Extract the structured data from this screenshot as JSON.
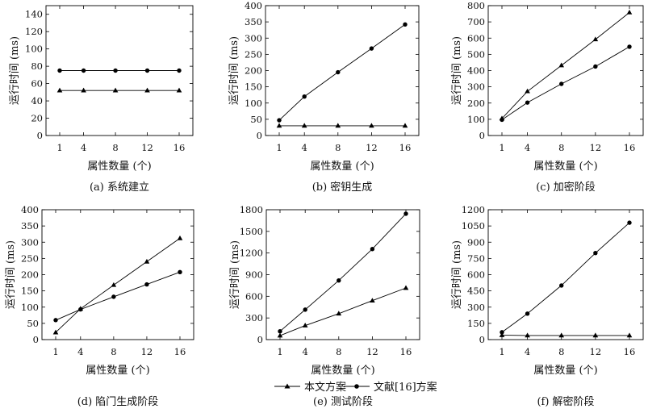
{
  "legend": {
    "ours": "本文方案",
    "ref": "文献[16]方案"
  },
  "colors": {
    "line": "#000000"
  },
  "chart_data": [
    {
      "type": "line",
      "caption": "(a) 系统建立",
      "xlabel": "属性数量 (个)",
      "ylabel": "运行时间 (ms)",
      "categories": [
        "1",
        "4",
        "8",
        "12",
        "16"
      ],
      "x": [
        1,
        4,
        8,
        12,
        16
      ],
      "ylim": [
        0,
        150
      ],
      "yticks": [
        0,
        20,
        40,
        60,
        80,
        100,
        120,
        140
      ],
      "series": [
        {
          "name": "本文方案",
          "marker": "triangle",
          "values": [
            52,
            52,
            52,
            52,
            52
          ]
        },
        {
          "name": "文献[16]方案",
          "marker": "circle",
          "values": [
            75,
            75,
            75,
            75,
            75
          ]
        }
      ]
    },
    {
      "type": "line",
      "caption": "(b) 密钥生成",
      "xlabel": "属性数量 (个)",
      "ylabel": "运行时间 (ms)",
      "categories": [
        "1",
        "4",
        "8",
        "12",
        "16"
      ],
      "x": [
        1,
        4,
        8,
        12,
        16
      ],
      "ylim": [
        0,
        400
      ],
      "yticks": [
        0,
        50,
        100,
        150,
        200,
        250,
        300,
        350,
        400
      ],
      "series": [
        {
          "name": "本文方案",
          "marker": "triangle",
          "values": [
            30,
            30,
            30,
            30,
            30
          ]
        },
        {
          "name": "文献[16]方案",
          "marker": "circle",
          "values": [
            47,
            120,
            195,
            268,
            342
          ]
        }
      ]
    },
    {
      "type": "line",
      "caption": "(c) 加密阶段",
      "xlabel": "属性数量 (个)",
      "ylabel": "运行时间 (ms)",
      "categories": [
        "1",
        "4",
        "8",
        "12",
        "16"
      ],
      "x": [
        1,
        4,
        8,
        12,
        16
      ],
      "ylim": [
        0,
        800
      ],
      "yticks": [
        0,
        100,
        200,
        300,
        400,
        500,
        600,
        700,
        800
      ],
      "series": [
        {
          "name": "本文方案",
          "marker": "triangle",
          "values": [
            105,
            272,
            432,
            592,
            758
          ]
        },
        {
          "name": "文献[16]方案",
          "marker": "circle",
          "values": [
            97,
            203,
            318,
            425,
            547
          ]
        }
      ]
    },
    {
      "type": "line",
      "caption": "(d) 陷门生成阶段",
      "xlabel": "属性数量 (个)",
      "ylabel": "运行时间 (ms)",
      "categories": [
        "1",
        "4",
        "8",
        "12",
        "16"
      ],
      "x": [
        1,
        4,
        8,
        12,
        16
      ],
      "ylim": [
        0,
        400
      ],
      "yticks": [
        0,
        50,
        100,
        150,
        200,
        250,
        300,
        350,
        400
      ],
      "series": [
        {
          "name": "本文方案",
          "marker": "triangle",
          "values": [
            22,
            95,
            168,
            240,
            312
          ]
        },
        {
          "name": "文献[16]方案",
          "marker": "circle",
          "values": [
            60,
            93,
            132,
            170,
            208
          ]
        }
      ]
    },
    {
      "type": "line",
      "caption": "(e) 测试阶段",
      "xlabel": "属性数量 (个)",
      "ylabel": "运行时间 (ms)",
      "categories": [
        "1",
        "4",
        "8",
        "12",
        "16"
      ],
      "x": [
        1,
        4,
        8,
        12,
        16
      ],
      "ylim": [
        0,
        1800
      ],
      "yticks": [
        0,
        300,
        600,
        900,
        1200,
        1500,
        1800
      ],
      "series": [
        {
          "name": "本文方案",
          "marker": "triangle",
          "values": [
            55,
            195,
            360,
            540,
            715
          ]
        },
        {
          "name": "文献[16]方案",
          "marker": "circle",
          "values": [
            115,
            415,
            820,
            1255,
            1745
          ]
        }
      ]
    },
    {
      "type": "line",
      "caption": "(f) 解密阶段",
      "xlabel": "属性数量 (个)",
      "ylabel": "运行时间 (ms)",
      "categories": [
        "1",
        "4",
        "8",
        "12",
        "16"
      ],
      "x": [
        1,
        4,
        8,
        12,
        16
      ],
      "ylim": [
        0,
        1200
      ],
      "yticks": [
        0,
        150,
        300,
        450,
        600,
        750,
        900,
        1050,
        1200
      ],
      "series": [
        {
          "name": "本文方案",
          "marker": "triangle",
          "values": [
            40,
            38,
            38,
            38,
            38
          ]
        },
        {
          "name": "文献[16]方案",
          "marker": "circle",
          "values": [
            68,
            240,
            500,
            800,
            1080
          ]
        }
      ]
    }
  ]
}
